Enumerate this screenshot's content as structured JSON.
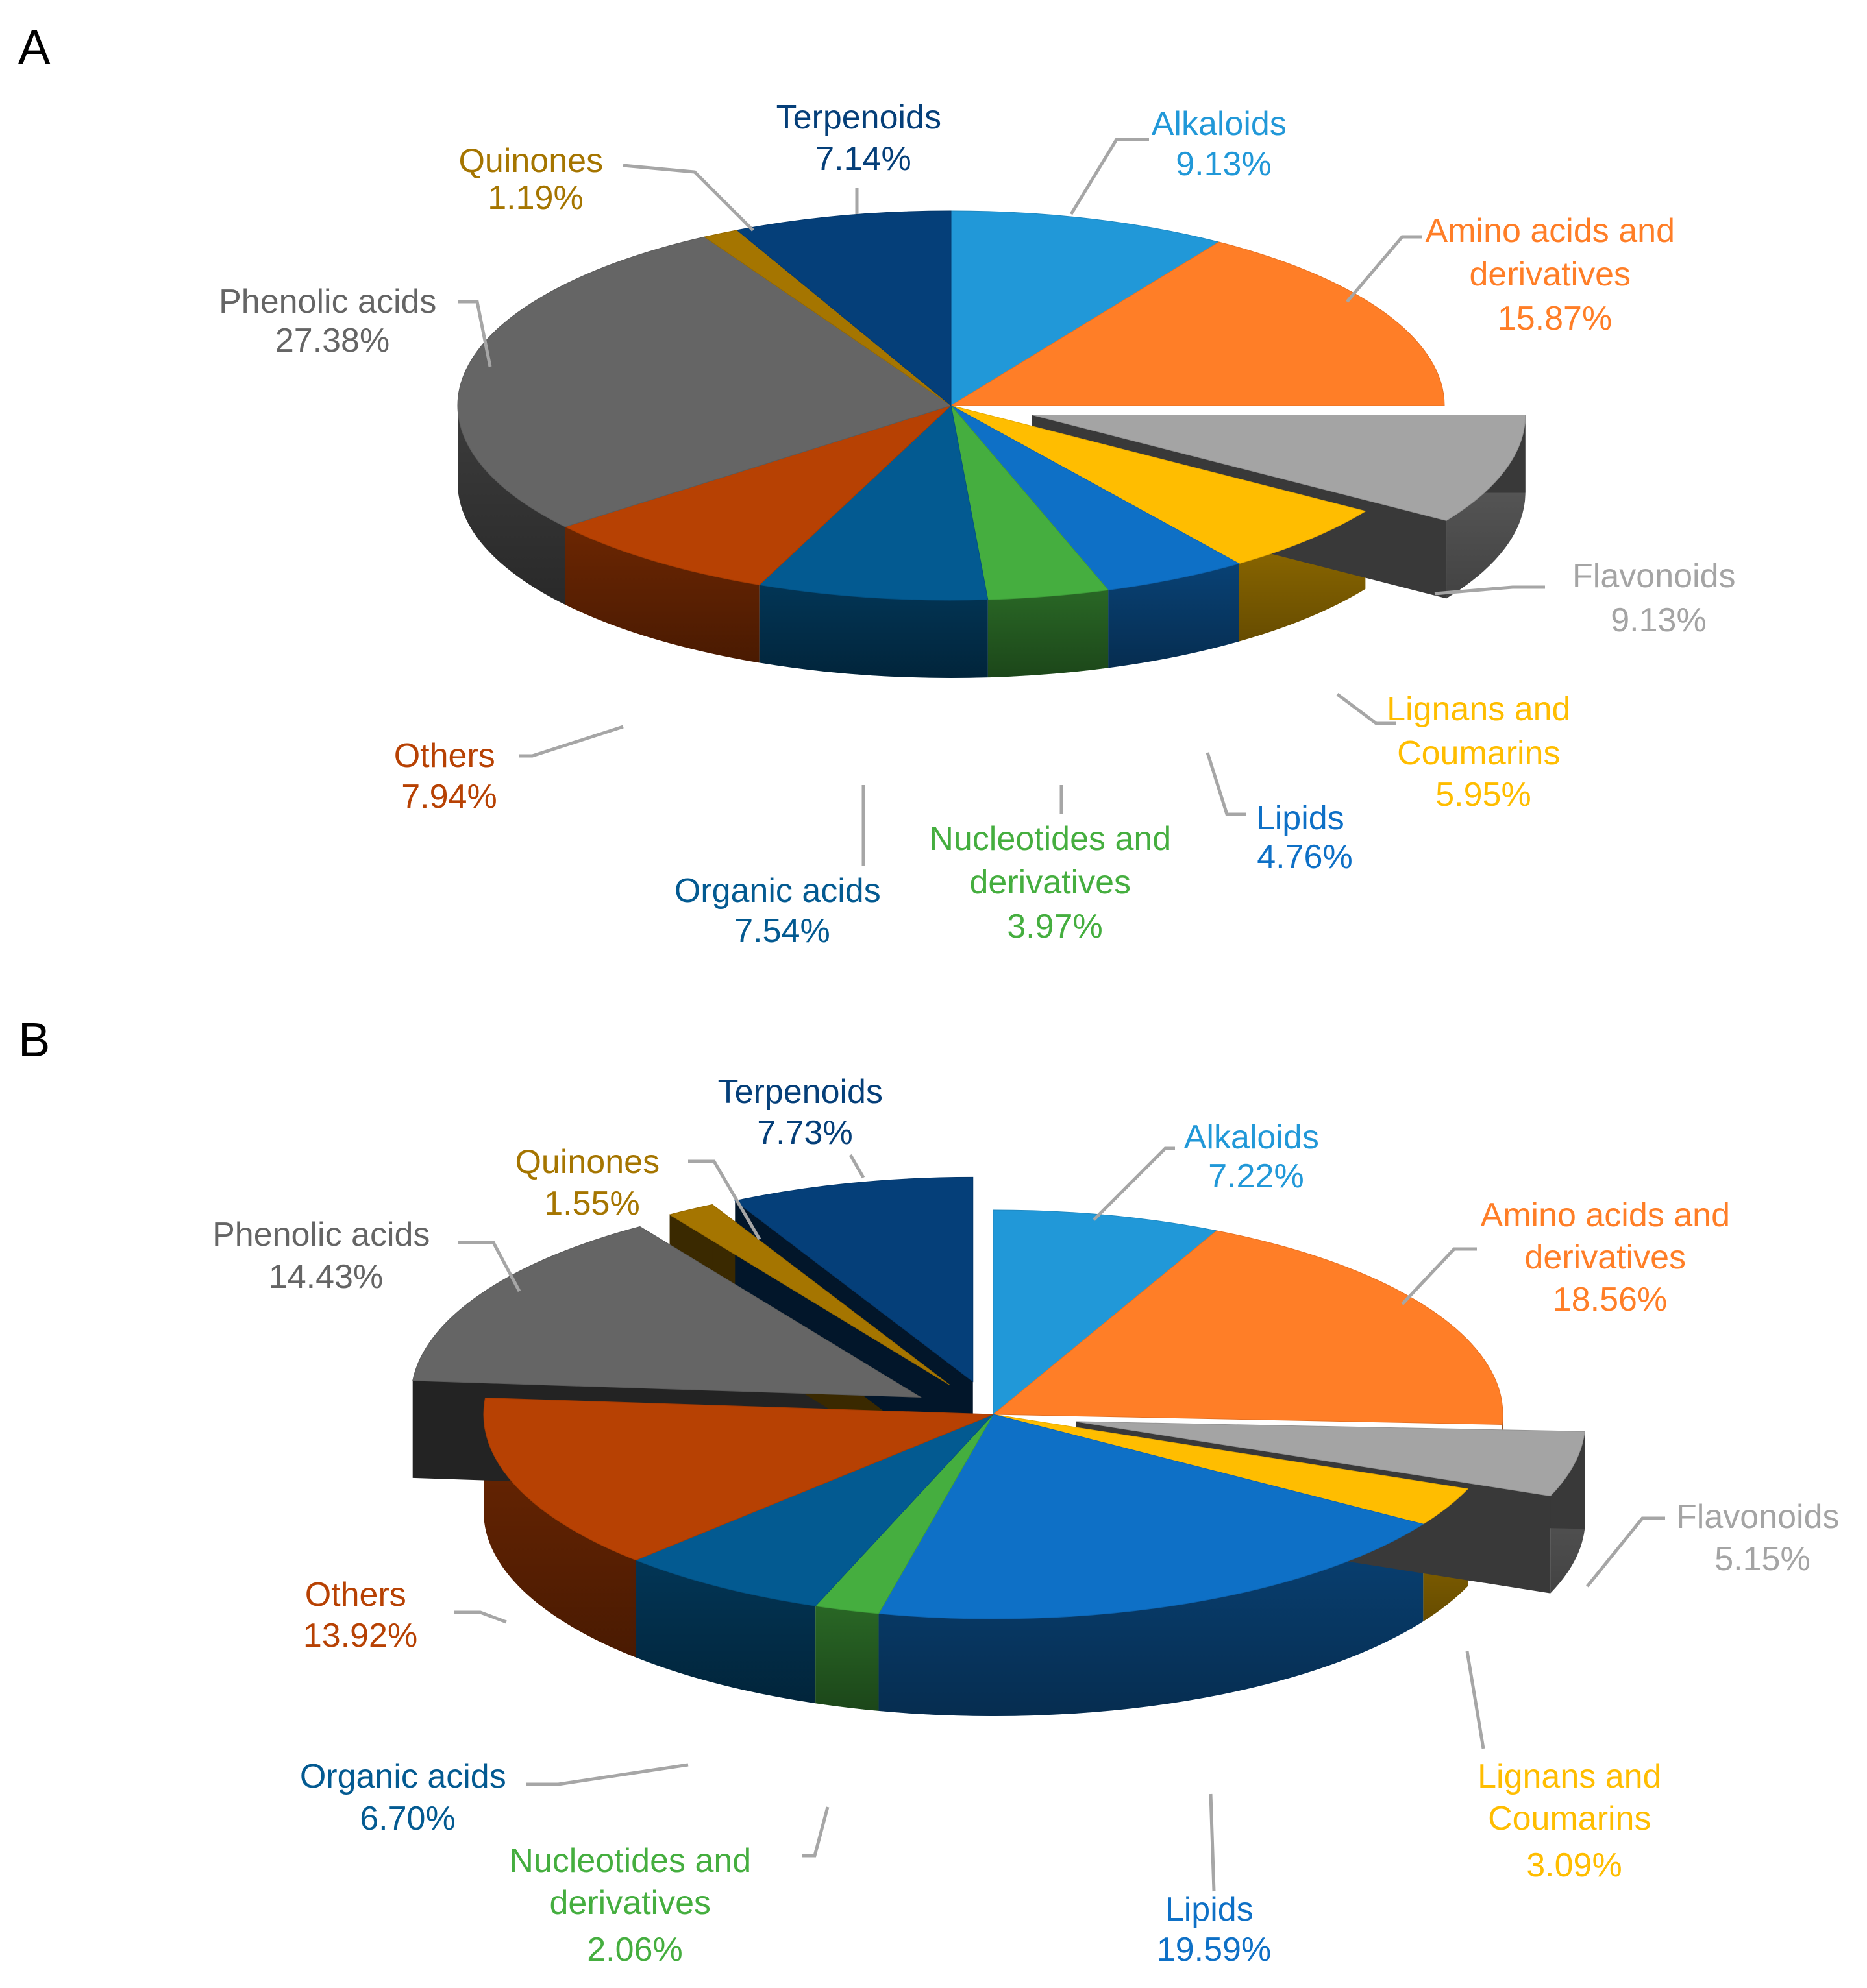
{
  "chart_data": [
    {
      "type": "pie",
      "panel": "A",
      "title": "",
      "slices": [
        {
          "label": "Alkaloids",
          "value": 9.13,
          "text": "9.13%",
          "color": "#2198D8",
          "exploded": false
        },
        {
          "label": "Amino acids and derivatives",
          "value": 15.87,
          "text": "15.87%",
          "color": "#FF7E27",
          "exploded": false
        },
        {
          "label": "Flavonoids",
          "value": 9.13,
          "text": "9.13%",
          "color": "#A4A4A4",
          "exploded": true
        },
        {
          "label": "Lignans and Coumarins",
          "value": 5.95,
          "text": "5.95%",
          "color": "#FFBD00",
          "exploded": false
        },
        {
          "label": "Lipids",
          "value": 4.76,
          "text": "4.76%",
          "color": "#0E70C6",
          "exploded": false
        },
        {
          "label": "Nucleotides and derivatives",
          "value": 3.97,
          "text": "3.97%",
          "color": "#45AE3F",
          "exploded": false
        },
        {
          "label": "Organic acids",
          "value": 7.54,
          "text": "7.54%",
          "color": "#035A91",
          "exploded": false
        },
        {
          "label": "Others",
          "value": 7.94,
          "text": "7.94%",
          "color": "#B74103",
          "exploded": false
        },
        {
          "label": "Phenolic acids",
          "value": 27.38,
          "text": "27.38%",
          "color": "#656565",
          "exploded": false
        },
        {
          "label": "Quinones",
          "value": 1.19,
          "text": "1.19%",
          "color": "#A57500",
          "exploded": false
        },
        {
          "label": "Terpenoids",
          "value": 7.14,
          "text": "7.14%",
          "color": "#053F79",
          "exploded": false
        }
      ]
    },
    {
      "type": "pie",
      "panel": "B",
      "title": "",
      "slices": [
        {
          "label": "Alkaloids",
          "value": 7.22,
          "text": "7.22%",
          "color": "#2198D8",
          "exploded": false
        },
        {
          "label": "Amino acids and derivatives",
          "value": 18.56,
          "text": "18.56%",
          "color": "#FF7E27",
          "exploded": false
        },
        {
          "label": "Flavonoids",
          "value": 5.15,
          "text": "5.15%",
          "color": "#A4A4A4",
          "exploded": true
        },
        {
          "label": "Lignans and Coumarins",
          "value": 3.09,
          "text": "3.09%",
          "color": "#FFBD00",
          "exploded": false
        },
        {
          "label": "Lipids",
          "value": 19.59,
          "text": "19.59%",
          "color": "#0E70C6",
          "exploded": false
        },
        {
          "label": "Nucleotides and derivatives",
          "value": 2.06,
          "text": "2.06%",
          "color": "#45AE3F",
          "exploded": false
        },
        {
          "label": "Organic acids",
          "value": 6.7,
          "text": "6.70%",
          "color": "#035A91",
          "exploded": false
        },
        {
          "label": "Others",
          "value": 13.92,
          "text": "13.92%",
          "color": "#B74103",
          "exploded": false
        },
        {
          "label": "Phenolic acids",
          "value": 14.43,
          "text": "14.43%",
          "color": "#656565",
          "exploded": true
        },
        {
          "label": "Quinones",
          "value": 1.55,
          "text": "1.55%",
          "color": "#A57500",
          "exploded": true
        },
        {
          "label": "Terpenoids",
          "value": 7.73,
          "text": "7.73%",
          "color": "#053F79",
          "exploded": true
        }
      ]
    }
  ],
  "panels": {
    "a": {
      "letter": "A",
      "labels": {
        "terpenoids": {
          "l1": "Terpenoids",
          "pct": "7.14%"
        },
        "alkaloids": {
          "l1": "Alkaloids",
          "pct": "9.13%"
        },
        "quinones": {
          "l1": "Quinones",
          "pct": "1.19%"
        },
        "amino": {
          "l1": "Amino acids and",
          "l2": "derivatives",
          "pct": "15.87%"
        },
        "phenolic": {
          "l1": "Phenolic acids",
          "pct": "27.38%"
        },
        "flavonoids": {
          "l1": "Flavonoids",
          "pct": "9.13%"
        },
        "lignans": {
          "l1": "Lignans and",
          "l2": "Coumarins",
          "pct": "5.95%"
        },
        "others": {
          "l1": "Others",
          "pct": "7.94%"
        },
        "lipids": {
          "l1": "Lipids",
          "pct": "4.76%"
        },
        "nucleotides": {
          "l1": "Nucleotides and",
          "l2": "derivatives",
          "pct": "3.97%"
        },
        "organic": {
          "l1": "Organic acids",
          "pct": "7.54%"
        }
      }
    },
    "b": {
      "letter": "B",
      "labels": {
        "terpenoids": {
          "l1": "Terpenoids",
          "pct": "7.73%"
        },
        "alkaloids": {
          "l1": "Alkaloids",
          "pct": "7.22%"
        },
        "quinones": {
          "l1": "Quinones",
          "pct": "1.55%"
        },
        "amino": {
          "l1": "Amino acids and",
          "l2": "derivatives",
          "pct": "18.56%"
        },
        "phenolic": {
          "l1": "Phenolic acids",
          "pct": "14.43%"
        },
        "flavonoids": {
          "l1": "Flavonoids",
          "pct": "5.15%"
        },
        "others": {
          "l1": "Others",
          "pct": "13.92%"
        },
        "lignans": {
          "l1": "Lignans and",
          "l2": "Coumarins",
          "pct": "3.09%"
        },
        "organic": {
          "l1": "Organic acids",
          "pct": "6.70%"
        },
        "nucleotides": {
          "l1": "Nucleotides and",
          "l2": "derivatives",
          "pct": "2.06%"
        },
        "lipids": {
          "l1": "Lipids",
          "pct": "19.59%"
        }
      }
    }
  },
  "colors": {
    "leader": "#A6A6A6",
    "alkaloids": "#2198D8",
    "amino": "#FF7E27",
    "flavonoids": "#A4A4A4",
    "lignans": "#FFBD00",
    "lipids": "#0E70C6",
    "nucleotides": "#45AE3F",
    "organic": "#035A91",
    "others": "#B74103",
    "phenolic": "#656565",
    "quinones": "#A57500",
    "terpenoids": "#053F79"
  }
}
